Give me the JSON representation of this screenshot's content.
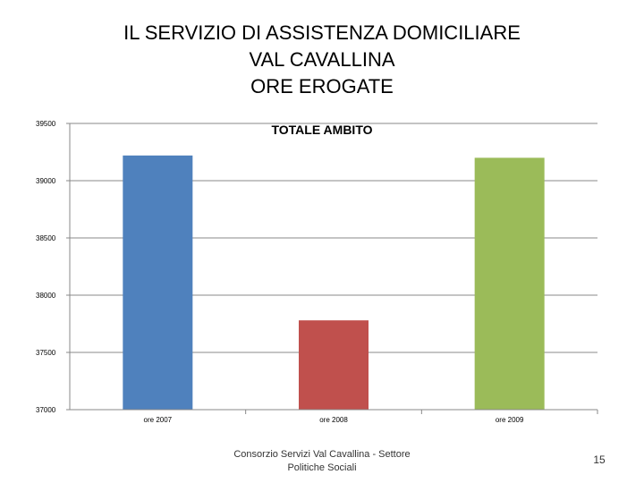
{
  "slide": {
    "title_lines": [
      "IL SERVIZIO DI ASSISTENZA DOMICILIARE",
      "VAL CAVALLINA",
      "ORE EROGATE"
    ],
    "footer": "Consorzio Servizi Val Cavallina - Settore Politiche Sociali",
    "page_number": "15"
  },
  "chart_data": {
    "type": "bar",
    "title": "TOTALE AMBITO",
    "categories": [
      "ore 2007",
      "ore 2008",
      "ore 2009"
    ],
    "values": [
      39220,
      37780,
      39200
    ],
    "colors": [
      "#4f81bd",
      "#c0504d",
      "#9bbb59"
    ],
    "ylim": [
      37000,
      39500
    ],
    "yticks": [
      37000,
      37500,
      38000,
      38500,
      39000,
      39500
    ],
    "grid": true,
    "legend": "none",
    "xlabel": "",
    "ylabel": ""
  }
}
